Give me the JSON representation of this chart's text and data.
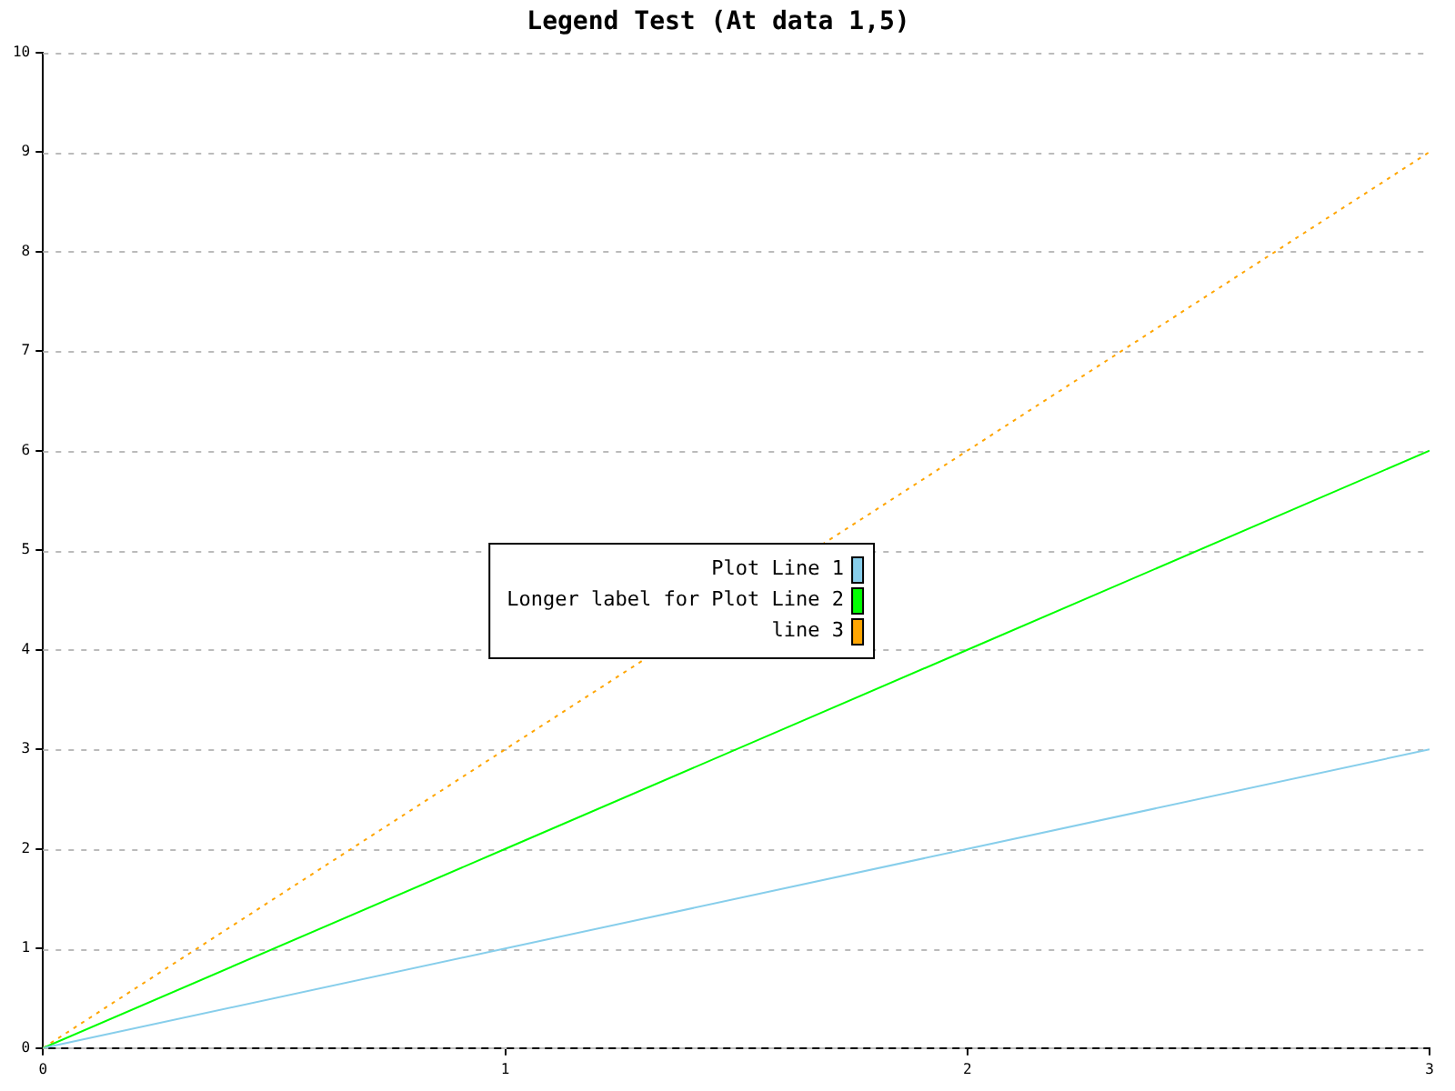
{
  "chart_data": {
    "type": "line",
    "title": "Legend Test (At data 1,5)",
    "x": [
      0,
      1,
      2,
      3
    ],
    "series": [
      {
        "name": "Plot Line 1",
        "color": "#87ceeb",
        "values": [
          0,
          1,
          2,
          3
        ],
        "line_style": "solid"
      },
      {
        "name": "Longer label for Plot Line 2",
        "color": "#00ff00",
        "values": [
          0,
          2,
          4,
          6
        ],
        "line_style": "solid"
      },
      {
        "name": "line 3",
        "color": "#ffa500",
        "values": [
          0,
          3,
          6,
          9
        ],
        "line_style": "dotted"
      }
    ],
    "xlim": [
      0,
      3
    ],
    "xticks": [
      0,
      1,
      2,
      3
    ],
    "ylim": [
      0,
      10
    ],
    "yticks": [
      0,
      1,
      2,
      3,
      4,
      5,
      6,
      7,
      8,
      9,
      10
    ],
    "grid": "y",
    "legend": "center",
    "marker": "none"
  }
}
